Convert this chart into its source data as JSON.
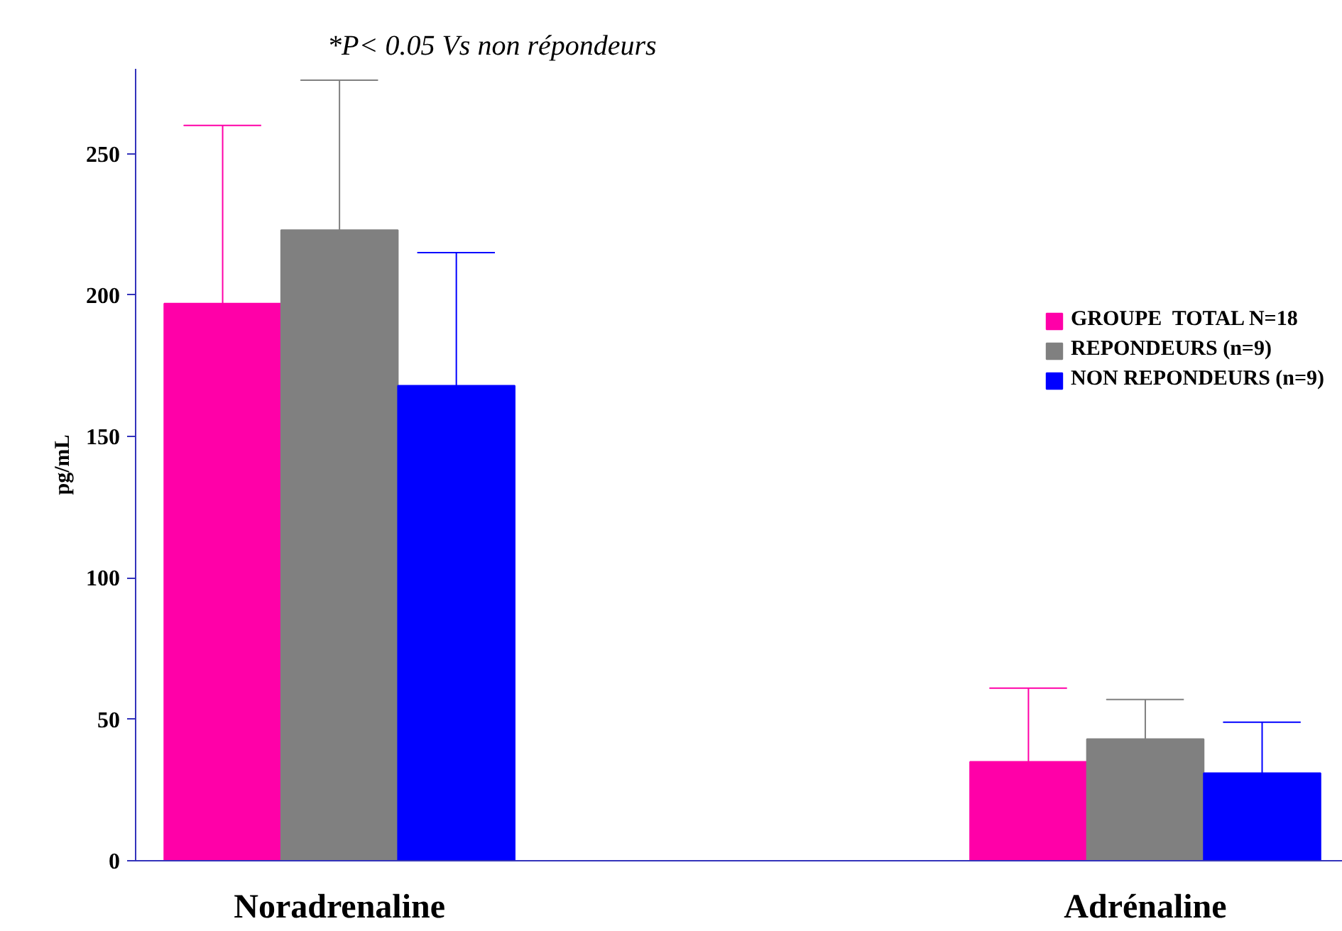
{
  "chart_data": {
    "type": "bar",
    "categories": [
      "Noradrenaline",
      "Adrénaline"
    ],
    "ylabel": "pg/mL",
    "annotations": [
      "*P< 0.05 Vs non répondeurs"
    ],
    "series": [
      {
        "name": "GROUPE  TOTAL N=18",
        "color": "#ff00a8",
        "values": [
          197,
          35
        ],
        "errors": [
          [
            197,
            260
          ],
          [
            35,
            61
          ]
        ]
      },
      {
        "name": "REPONDEURS (n=9)",
        "color": "#808080",
        "values": [
          223,
          43
        ],
        "errors": [
          [
            223,
            276
          ],
          [
            43,
            57
          ]
        ]
      },
      {
        "name": "NON REPONDEURS (n=9)",
        "color": "#0000ff",
        "values": [
          168,
          31
        ],
        "errors": [
          [
            168,
            215
          ],
          [
            31,
            49
          ]
        ]
      }
    ],
    "ylim": [
      0,
      280
    ],
    "yticks": [
      0,
      50,
      100,
      150,
      200,
      250
    ],
    "grid": false,
    "legend": "right"
  }
}
